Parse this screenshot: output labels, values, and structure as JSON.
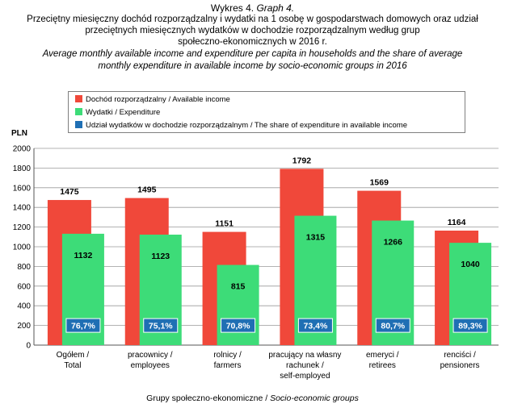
{
  "header": {
    "graph_label_pl": "Wykres 4.",
    "graph_label_en": "Graph 4.",
    "title_pl_line1": "Przeciętny miesięczny dochód rozporządzalny i wydatki na 1 osobę w gospodarstwach domowych oraz udział",
    "title_pl_line2": "przeciętnych miesięcznych wydatków w dochodzie rozporządzalnym według grup",
    "title_pl_line3": "społeczno-ekonomicznych w 2016 r.",
    "title_en_line1": "Average monthly available income and expenditure per capita in households and the share of average",
    "title_en_line2": "monthly expenditure in available income by socio-economic groups in 2016"
  },
  "colors": {
    "income": "#f0483a",
    "expenditure": "#3ddc78",
    "share": "#1f6fb4",
    "grid": "#9a9a9a"
  },
  "chart_data": {
    "type": "bar",
    "ylabel": "PLN",
    "xlabel_pl": "Grupy społeczno-ekonomiczne",
    "xlabel_en": "Socio-economic groups",
    "ylim": [
      0,
      2000
    ],
    "yticks": [
      0,
      200,
      400,
      600,
      800,
      1000,
      1200,
      1400,
      1600,
      1800,
      2000
    ],
    "grid": true,
    "legend_position": "top",
    "categories": [
      [
        "Ogółem /",
        "Total"
      ],
      [
        "pracownicy /",
        "employees"
      ],
      [
        "rolnicy /",
        "farmers"
      ],
      [
        "pracujący na własny",
        "rachunek /",
        "self-employed"
      ],
      [
        "emeryci /",
        "retirees"
      ],
      [
        "renciści /",
        "pensioners"
      ]
    ],
    "series": [
      {
        "name": "Dochód rozporządzalny / Available income",
        "values": [
          1475,
          1495,
          1151,
          1792,
          1569,
          1164
        ]
      },
      {
        "name": "Wydatki / Expenditure",
        "values": [
          1132,
          1123,
          815,
          1315,
          1266,
          1040
        ]
      },
      {
        "name": "Udział wydatków w dochodzie rozporządzalnym / The share of expenditure in available income",
        "values": [
          "76,7%",
          "75,1%",
          "70,8%",
          "73,4%",
          "80,7%",
          "89,3%"
        ]
      }
    ]
  }
}
